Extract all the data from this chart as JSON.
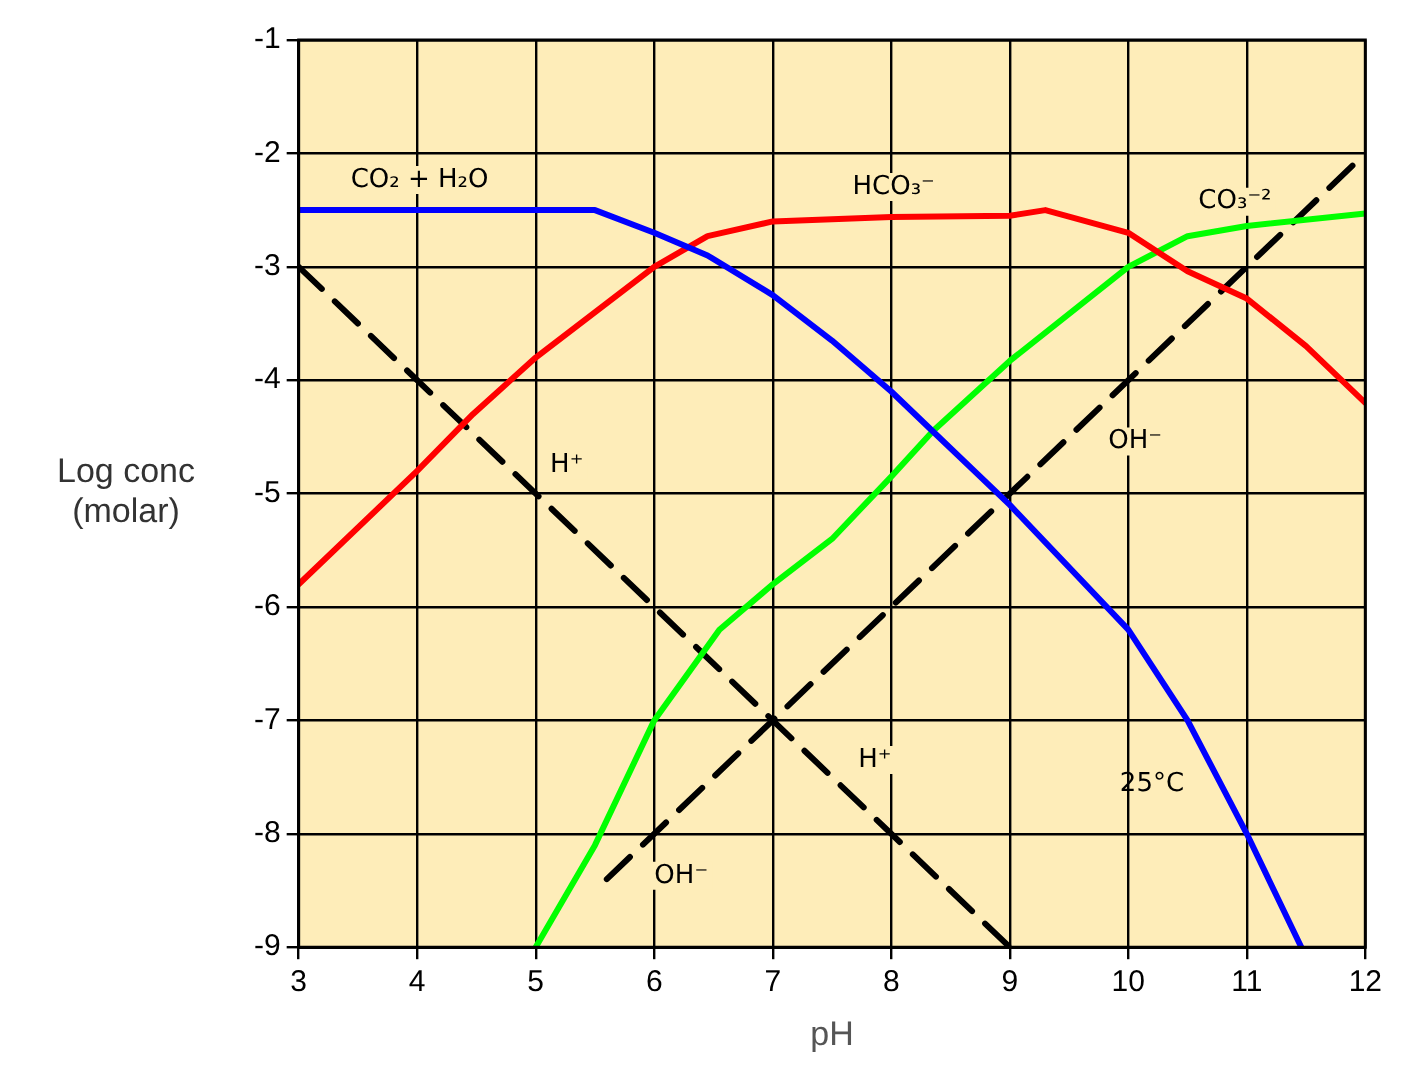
{
  "chart_data": {
    "type": "line",
    "xlabel": "pH",
    "ylabel": "Log conc (molar)",
    "xlim": [
      3,
      12
    ],
    "ylim": [
      -9,
      -1
    ],
    "xticks": [
      3,
      4,
      5,
      6,
      7,
      8,
      9,
      10,
      11,
      12
    ],
    "yticks": [
      -9,
      -8,
      -7,
      -6,
      -5,
      -4,
      -3,
      -2,
      -1
    ],
    "grid": true,
    "marker": "none",
    "series": [
      {
        "color": "#0000ff",
        "x": [
          3,
          5.5,
          6,
          6.45,
          7,
          7.5,
          8,
          8.35,
          8.7,
          9,
          10,
          10.5,
          11,
          11.46
        ],
        "values": [
          -2.5,
          -2.5,
          -2.7,
          -2.9,
          -3.25,
          -3.65,
          -4.1,
          -4.45,
          -4.8,
          -5.1,
          -6.2,
          -7,
          -8,
          -9
        ]
      },
      {
        "color": "#ff0000",
        "x": [
          3,
          4,
          4.47,
          5,
          6,
          6.45,
          7,
          8,
          9,
          9.3,
          10,
          10.5,
          11,
          11.5,
          12
        ],
        "values": [
          -5.8,
          -4.8,
          -4.3,
          -3.8,
          -3,
          -2.73,
          -2.6,
          -2.56,
          -2.55,
          -2.5,
          -2.7,
          -3.04,
          -3.28,
          -3.7,
          -4.2
        ]
      },
      {
        "color": "#00ff00",
        "x": [
          5,
          5.5,
          6,
          6.55,
          7,
          7.5,
          8,
          8.35,
          9,
          10,
          10.5,
          11,
          12
        ],
        "values": [
          -9,
          -8.1,
          -7,
          -6.2,
          -5.8,
          -5.4,
          -4.85,
          -4.45,
          -3.83,
          -3,
          -2.73,
          -2.64,
          -2.53
        ]
      },
      {
        "color": "#000000",
        "line_style": "dashed",
        "x": [
          3,
          9
        ],
        "values": [
          -3,
          -9
        ]
      },
      {
        "color": "#000000",
        "line_style": "dashed",
        "x": [
          5.6,
          12
        ],
        "values": [
          -8.4,
          -2
        ]
      }
    ],
    "annotations": [
      {
        "text": "CO₂ + H₂O",
        "x": 4.02,
        "y": -2.5
      },
      {
        "text": "HCO₃⁻",
        "x": 8.02,
        "y": -2.56
      },
      {
        "text": "CO₃⁻²",
        "x": 10.9,
        "y": -2.69
      },
      {
        "text": "H⁺",
        "x": 4.75,
        "y": -4.75
      },
      {
        "text": "OH⁻",
        "x": 9.46,
        "y": -4.54
      },
      {
        "text": "H⁺",
        "x": 7.35,
        "y": -7.35
      },
      {
        "text": "OH⁻",
        "x": 5.63,
        "y": -8.37
      },
      "25°C"
    ]
  }
}
